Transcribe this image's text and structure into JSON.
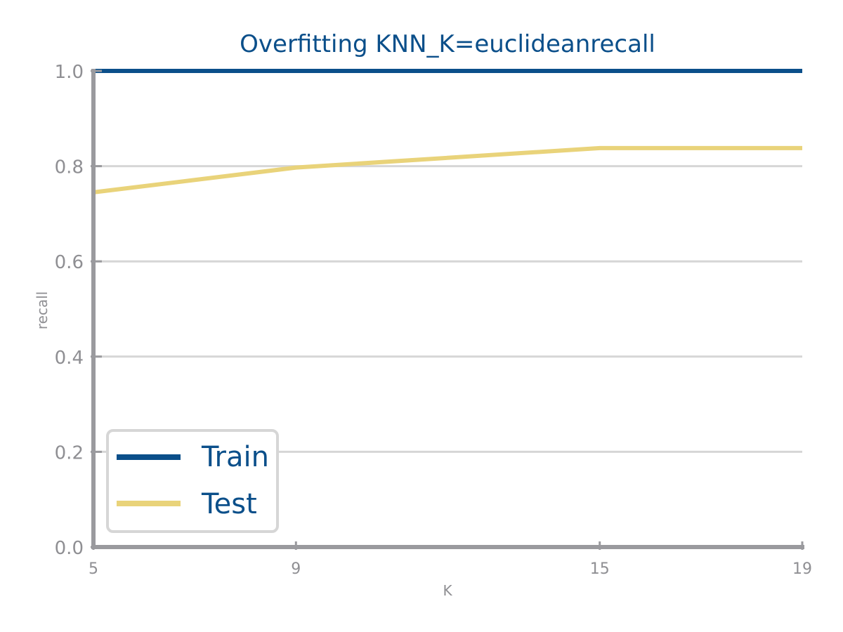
{
  "chart_data": {
    "type": "line",
    "title": "Overfitting KNN_K=euclideanrecall",
    "xlabel": "K",
    "ylabel": "recall",
    "x": [
      5,
      9,
      15,
      19
    ],
    "x_tick_labels": [
      "5",
      "9",
      "15",
      "19"
    ],
    "y_ticks": [
      0.0,
      0.2,
      0.4,
      0.6,
      0.8,
      1.0
    ],
    "y_tick_labels": [
      "0.0",
      "0.2",
      "0.4",
      "0.6",
      "0.8",
      "1.0"
    ],
    "xlim": [
      5,
      19
    ],
    "ylim": [
      0.0,
      1.0
    ],
    "grid": "horizontal",
    "legend_position": "lower-left",
    "series": [
      {
        "name": "Train",
        "values": [
          1.0,
          1.0,
          1.0,
          1.0
        ],
        "color": "#0b4f8a"
      },
      {
        "name": "Test",
        "values": [
          0.745,
          0.797,
          0.838,
          0.838
        ],
        "color": "#e9d37a"
      }
    ],
    "colors": {
      "axis": "#9a9a9e",
      "grid": "#d6d6d6",
      "title": "#0b4f8a",
      "tick_text": "#8f8f93",
      "legend_border": "#d6d6d6"
    }
  }
}
